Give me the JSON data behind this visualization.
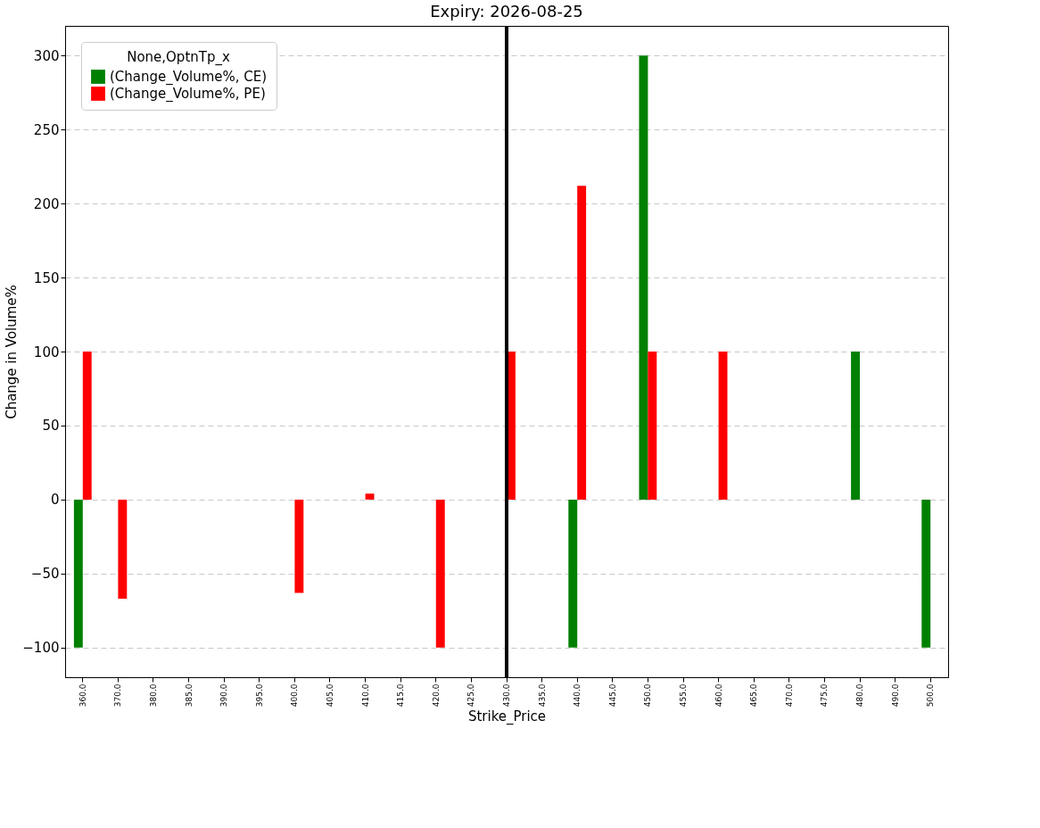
{
  "chart_data": {
    "type": "bar",
    "title": "Expiry: 2026-08-25",
    "xlabel": "Strike_Price",
    "ylabel": "Change in Volume%",
    "legend_title": "None,OptnTp_x",
    "categories": [
      "360.0",
      "370.0",
      "380.0",
      "385.0",
      "390.0",
      "395.0",
      "400.0",
      "405.0",
      "410.0",
      "415.0",
      "420.0",
      "425.0",
      "430.0",
      "435.0",
      "440.0",
      "445.0",
      "450.0",
      "455.0",
      "460.0",
      "465.0",
      "470.0",
      "475.0",
      "480.0",
      "490.0",
      "500.0"
    ],
    "series": [
      {
        "name": "(Change_Volume%, CE)",
        "color": "#008000",
        "values": [
          -100,
          null,
          null,
          null,
          null,
          null,
          null,
          null,
          null,
          null,
          null,
          null,
          null,
          null,
          -100,
          null,
          300,
          null,
          null,
          null,
          null,
          null,
          100,
          null,
          -100
        ]
      },
      {
        "name": "(Change_Volume%, PE)",
        "color": "#ff0000",
        "values": [
          100,
          -67,
          null,
          null,
          null,
          null,
          -63,
          null,
          4,
          null,
          -100,
          null,
          100,
          null,
          212,
          null,
          100,
          null,
          100,
          null,
          null,
          null,
          null,
          null,
          null
        ]
      }
    ],
    "ylim": [
      -120,
      320
    ],
    "yticks": [
      -100,
      -50,
      0,
      50,
      100,
      150,
      200,
      250,
      300
    ],
    "grid": "y",
    "legend": "top left",
    "ref_lines": [
      {
        "axis": "x",
        "value": "430.0",
        "color": "#000000"
      }
    ]
  }
}
